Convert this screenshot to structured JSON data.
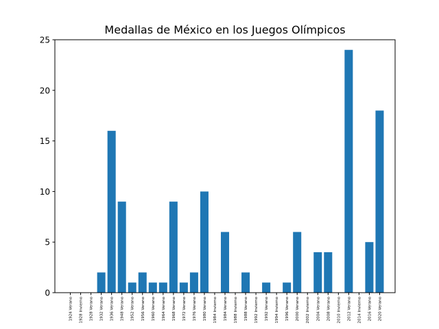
{
  "chart_data": {
    "type": "bar",
    "title": "Medallas de México en los Juegos Olímpicos",
    "xlabel": "",
    "ylabel": "",
    "ylim": [
      0,
      25
    ],
    "yticks": [
      0,
      5,
      10,
      15,
      20,
      25
    ],
    "grid": false,
    "bar_color": "#1f77b4",
    "categories": [
      "1924 Verano",
      "1928 Invierno",
      "1928 Verano",
      "1932 Verano",
      "1936 Verano",
      "1948 Verano",
      "1952 Verano",
      "1956 Verano",
      "1960 Verano",
      "1964 Verano",
      "1968 Verano",
      "1972 Verano",
      "1976 Verano",
      "1980 Verano",
      "1984 Invierno",
      "1984 Verano",
      "1988 Invierno",
      "1988 Verano",
      "1992 Invierno",
      "1992 Verano",
      "1994 Invierno",
      "1996 Verano",
      "2000 Verano",
      "2002 Invierno",
      "2004 Verano",
      "2008 Verano",
      "2010 Invierno",
      "2012 Verano",
      "2014 Invierno",
      "2016 Verano",
      "2020 Verano"
    ],
    "values": [
      0,
      0,
      0,
      2,
      16,
      9,
      1,
      2,
      1,
      1,
      9,
      1,
      2,
      10,
      0,
      6,
      0,
      2,
      0,
      1,
      0,
      1,
      6,
      0,
      4,
      4,
      0,
      24,
      0,
      5,
      18
    ]
  }
}
